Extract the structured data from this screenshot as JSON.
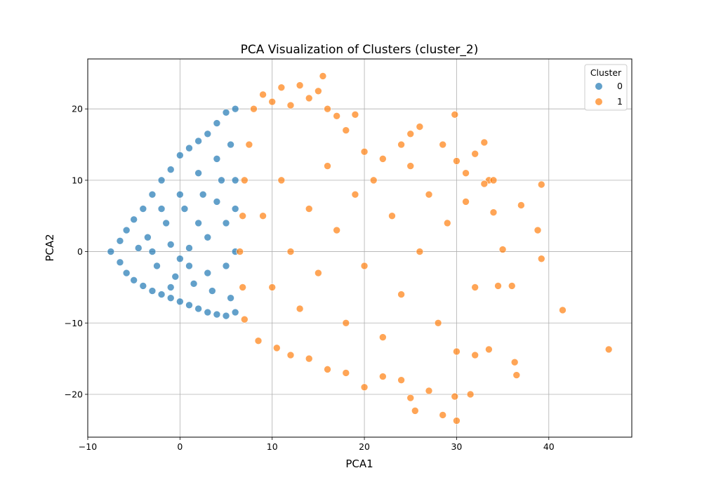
{
  "chart_data": {
    "type": "scatter",
    "title": "PCA Visualization of Clusters (cluster_2)",
    "xlabel": "PCA1",
    "ylabel": "PCA2",
    "xlim": [
      -10,
      49
    ],
    "ylim": [
      -26,
      27
    ],
    "xticks": [
      -10,
      0,
      10,
      20,
      30,
      40
    ],
    "yticks": [
      -20,
      -10,
      0,
      10,
      20
    ],
    "grid": true,
    "legend": {
      "title": "Cluster",
      "placement": "top-right",
      "entries": [
        "0",
        "1"
      ]
    },
    "series": [
      {
        "name": "0",
        "color": "#1f77b4",
        "points": [
          [
            -7.5,
            0.0
          ],
          [
            -6.5,
            1.5
          ],
          [
            -6.5,
            -1.5
          ],
          [
            -5.8,
            3.0
          ],
          [
            -5.8,
            -3.0
          ],
          [
            -5.0,
            4.5
          ],
          [
            -5.0,
            -4.0
          ],
          [
            -4.0,
            6.0
          ],
          [
            -4.0,
            -4.8
          ],
          [
            -3.0,
            8.0
          ],
          [
            -3.0,
            -5.5
          ],
          [
            -2.0,
            10.0
          ],
          [
            -2.0,
            -6.0
          ],
          [
            -1.0,
            11.5
          ],
          [
            -1.0,
            -6.5
          ],
          [
            0.0,
            13.5
          ],
          [
            0.0,
            -7.0
          ],
          [
            1.0,
            14.5
          ],
          [
            1.0,
            -7.5
          ],
          [
            2.0,
            15.5
          ],
          [
            2.0,
            -8.0
          ],
          [
            3.0,
            16.5
          ],
          [
            3.0,
            -8.5
          ],
          [
            4.0,
            18.0
          ],
          [
            4.0,
            -8.8
          ],
          [
            5.0,
            19.5
          ],
          [
            5.0,
            -9.0
          ],
          [
            6.0,
            20.0
          ],
          [
            6.0,
            -8.5
          ],
          [
            -4.5,
            0.5
          ],
          [
            -3.5,
            2.0
          ],
          [
            -2.5,
            -2.0
          ],
          [
            -1.5,
            4.0
          ],
          [
            -0.5,
            -3.5
          ],
          [
            0.5,
            6.0
          ],
          [
            1.5,
            -4.5
          ],
          [
            2.5,
            8.0
          ],
          [
            3.5,
            -5.5
          ],
          [
            4.5,
            10.0
          ],
          [
            5.5,
            -6.5
          ],
          [
            -3.0,
            0.0
          ],
          [
            -1.0,
            1.0
          ],
          [
            1.0,
            0.5
          ],
          [
            3.0,
            2.0
          ],
          [
            5.0,
            4.0
          ],
          [
            0.0,
            8.0
          ],
          [
            2.0,
            11.0
          ],
          [
            4.0,
            13.0
          ],
          [
            5.5,
            15.0
          ],
          [
            1.0,
            -2.0
          ],
          [
            3.0,
            -3.0
          ],
          [
            5.0,
            -2.0
          ],
          [
            6.0,
            0.0
          ],
          [
            6.0,
            6.0
          ],
          [
            6.0,
            10.0
          ],
          [
            -2.0,
            6.0
          ],
          [
            -1.0,
            -5.0
          ],
          [
            2.0,
            4.0
          ],
          [
            4.0,
            7.0
          ],
          [
            0.0,
            -1.0
          ]
        ]
      },
      {
        "name": "1",
        "color": "#ff7f0e",
        "points": [
          [
            8.0,
            20.0
          ],
          [
            9.0,
            22.0
          ],
          [
            10.0,
            21.0
          ],
          [
            11.0,
            23.0
          ],
          [
            12.0,
            20.5
          ],
          [
            13.0,
            23.3
          ],
          [
            14.0,
            21.5
          ],
          [
            15.0,
            22.5
          ],
          [
            15.5,
            24.6
          ],
          [
            16.0,
            20.0
          ],
          [
            17.0,
            19.0
          ],
          [
            19.0,
            19.2
          ],
          [
            18.0,
            17.0
          ],
          [
            20.0,
            14.0
          ],
          [
            22.0,
            13.0
          ],
          [
            24.0,
            15.0
          ],
          [
            25.0,
            16.5
          ],
          [
            26.0,
            17.5
          ],
          [
            28.5,
            15.0
          ],
          [
            29.8,
            19.2
          ],
          [
            30.0,
            12.7
          ],
          [
            31.0,
            11.0
          ],
          [
            32.0,
            13.7
          ],
          [
            33.0,
            15.3
          ],
          [
            33.5,
            10.0
          ],
          [
            34.0,
            10.0
          ],
          [
            34.0,
            5.5
          ],
          [
            35.0,
            0.3
          ],
          [
            36.0,
            -4.8
          ],
          [
            37.0,
            6.5
          ],
          [
            38.8,
            3.0
          ],
          [
            39.2,
            9.4
          ],
          [
            39.2,
            -1.0
          ],
          [
            41.5,
            -8.2
          ],
          [
            46.5,
            -13.7
          ],
          [
            36.5,
            -17.3
          ],
          [
            36.3,
            -15.5
          ],
          [
            33.5,
            -13.7
          ],
          [
            32.0,
            -14.5
          ],
          [
            31.5,
            -20.0
          ],
          [
            30.0,
            -23.7
          ],
          [
            29.8,
            -20.3
          ],
          [
            28.5,
            -22.9
          ],
          [
            27.0,
            -19.5
          ],
          [
            25.5,
            -22.3
          ],
          [
            25.0,
            -20.5
          ],
          [
            24.0,
            -18.0
          ],
          [
            22.0,
            -17.5
          ],
          [
            20.0,
            -19.0
          ],
          [
            18.0,
            -17.0
          ],
          [
            16.0,
            -16.5
          ],
          [
            14.0,
            -15.0
          ],
          [
            12.0,
            -14.5
          ],
          [
            10.5,
            -13.5
          ],
          [
            8.5,
            -12.5
          ],
          [
            7.0,
            -9.5
          ],
          [
            6.8,
            -5.0
          ],
          [
            6.5,
            0.0
          ],
          [
            6.8,
            5.0
          ],
          [
            7.0,
            10.0
          ],
          [
            7.5,
            15.0
          ],
          [
            9.0,
            5.0
          ],
          [
            10.0,
            -5.0
          ],
          [
            11.0,
            10.0
          ],
          [
            12.0,
            0.0
          ],
          [
            13.0,
            -8.0
          ],
          [
            14.0,
            6.0
          ],
          [
            15.0,
            -3.0
          ],
          [
            16.0,
            12.0
          ],
          [
            17.0,
            3.0
          ],
          [
            18.0,
            -10.0
          ],
          [
            19.0,
            8.0
          ],
          [
            20.0,
            -2.0
          ],
          [
            21.0,
            10.0
          ],
          [
            22.0,
            -12.0
          ],
          [
            23.0,
            5.0
          ],
          [
            24.0,
            -6.0
          ],
          [
            25.0,
            12.0
          ],
          [
            26.0,
            0.0
          ],
          [
            27.0,
            8.0
          ],
          [
            28.0,
            -10.0
          ],
          [
            29.0,
            4.0
          ],
          [
            30.0,
            -14.0
          ],
          [
            31.0,
            7.0
          ],
          [
            32.0,
            -5.0
          ],
          [
            33.0,
            9.5
          ],
          [
            34.5,
            -4.8
          ]
        ]
      }
    ]
  }
}
